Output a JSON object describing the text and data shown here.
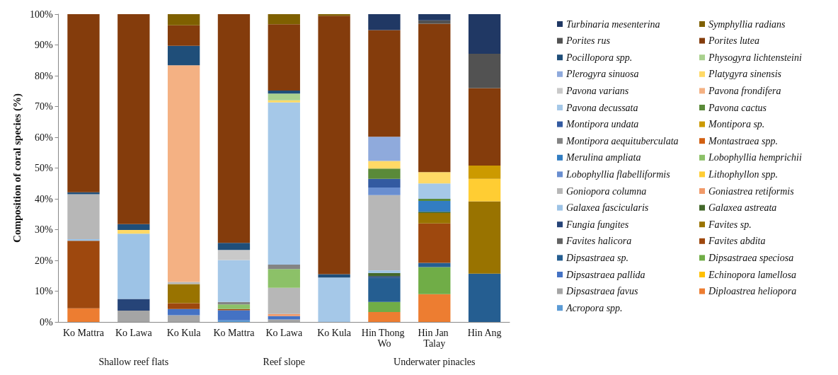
{
  "chart_data": {
    "type": "bar",
    "stacked": true,
    "ylabel": "Composition of coral species (%)",
    "categories": [
      "Ko Mattra",
      "Ko Lawa",
      "Ko Kula",
      "Ko Mattra",
      "Ko Lawa",
      "Ko Kula",
      "Hin Thong Wo",
      "Hin Jan Talay",
      "Hin Ang"
    ],
    "annotations": [
      "Shallow reef flats",
      "Reef slope",
      "Underwater pinacles"
    ],
    "ylim": [
      0,
      100
    ],
    "yticks": [
      {
        "value": 0,
        "label": "0%"
      },
      {
        "value": 10,
        "label": "10%"
      },
      {
        "value": 20,
        "label": "20%"
      },
      {
        "value": 30,
        "label": "30%"
      },
      {
        "value": 40,
        "label": "40%"
      },
      {
        "value": 50,
        "label": "50%"
      },
      {
        "value": 60,
        "label": "60%"
      },
      {
        "value": 70,
        "label": "70%"
      },
      {
        "value": 80,
        "label": "80%"
      },
      {
        "value": 90,
        "label": "90%"
      },
      {
        "value": 100,
        "label": "100%"
      }
    ],
    "legend": "right",
    "series": [
      {
        "name": "Acropora spp.",
        "color": "#5b9bd5",
        "values": [
          null,
          null,
          null,
          0.5,
          null,
          null,
          null,
          null,
          null
        ]
      },
      {
        "name": "Diploastrea heliopora",
        "color": "#ed7d31",
        "values": [
          4.4,
          null,
          null,
          null,
          null,
          null,
          3.2,
          9.0,
          null
        ]
      },
      {
        "name": "Dipsastraea favus",
        "color": "#a5a5a5",
        "values": [
          null,
          3.7,
          2.2,
          null,
          0.8,
          null,
          null,
          null,
          null
        ]
      },
      {
        "name": "Echinopora lamellosa",
        "color": "#ffc000",
        "values": [
          null,
          null,
          null,
          null,
          null,
          null,
          null,
          null,
          null
        ]
      },
      {
        "name": "Dipsastraea pallida",
        "color": "#4472c4",
        "values": [
          null,
          null,
          2.0,
          3.3,
          1.1,
          null,
          null,
          null,
          null
        ]
      },
      {
        "name": "Dipsastraea speciosa",
        "color": "#70ad47",
        "values": [
          null,
          null,
          null,
          null,
          null,
          null,
          3.3,
          8.8,
          null
        ]
      },
      {
        "name": "Dipsastraea sp.",
        "color": "#255e91",
        "values": [
          null,
          null,
          null,
          null,
          null,
          null,
          7.9,
          1.4,
          15.7
        ]
      },
      {
        "name": "Favites abdita",
        "color": "#9e480e",
        "values": [
          22.0,
          null,
          1.9,
          0.4,
          null,
          null,
          null,
          12.8,
          null
        ]
      },
      {
        "name": "Favites halicora",
        "color": "#636363",
        "values": [
          null,
          null,
          null,
          null,
          null,
          null,
          null,
          null,
          null
        ]
      },
      {
        "name": "Favites sp.",
        "color": "#997300",
        "values": [
          null,
          null,
          6.2,
          null,
          null,
          null,
          null,
          3.4,
          23.5
        ]
      },
      {
        "name": "Fungia fungites",
        "color": "#264478",
        "values": [
          null,
          3.8,
          null,
          null,
          null,
          null,
          0.5,
          null,
          null
        ]
      },
      {
        "name": "Galaxea astreata",
        "color": "#43682b",
        "values": [
          null,
          null,
          null,
          null,
          null,
          null,
          1.0,
          0.4,
          null
        ]
      },
      {
        "name": "Galaxea fascicularis",
        "color": "#9dc3e6",
        "values": [
          0.5,
          21.2,
          null,
          null,
          null,
          null,
          0.8,
          null,
          null
        ]
      },
      {
        "name": "Goniastrea retiformis",
        "color": "#f19a69",
        "values": [
          null,
          null,
          null,
          null,
          0.7,
          null,
          null,
          null,
          null
        ]
      },
      {
        "name": "Goniopora columna",
        "color": "#b7b7b7",
        "values": [
          14.6,
          null,
          0.7,
          null,
          8.5,
          null,
          24.5,
          null,
          null
        ]
      },
      {
        "name": "Lithophyllon spp.",
        "color": "#ffcd33",
        "values": [
          null,
          null,
          null,
          null,
          null,
          null,
          null,
          null,
          7.3
        ]
      },
      {
        "name": "Lobophyllia flabelliformis",
        "color": "#698ed0",
        "values": [
          null,
          null,
          null,
          null,
          null,
          null,
          2.5,
          null,
          null
        ]
      },
      {
        "name": "Lobophyllia hemprichii",
        "color": "#8cc168",
        "values": [
          null,
          null,
          null,
          1.5,
          6.1,
          null,
          null,
          null,
          null
        ]
      },
      {
        "name": "Merulina ampliata",
        "color": "#327dc2",
        "values": [
          null,
          null,
          null,
          null,
          null,
          null,
          null,
          3.5,
          null
        ]
      },
      {
        "name": "Montastraea spp.",
        "color": "#d26012",
        "values": [
          null,
          null,
          null,
          null,
          null,
          null,
          null,
          null,
          null
        ]
      },
      {
        "name": "Montipora aequituberculata",
        "color": "#848484",
        "values": [
          null,
          null,
          null,
          0.8,
          1.4,
          null,
          null,
          null,
          null
        ]
      },
      {
        "name": "Montipora sp.",
        "color": "#cc9a00",
        "values": [
          null,
          null,
          null,
          null,
          null,
          null,
          null,
          null,
          4.3
        ]
      },
      {
        "name": "Montipora undata",
        "color": "#335aa1",
        "values": [
          null,
          null,
          null,
          null,
          null,
          null,
          2.8,
          null,
          null
        ]
      },
      {
        "name": "Pavona cactus",
        "color": "#5a8a39",
        "values": [
          null,
          null,
          null,
          null,
          null,
          null,
          3.3,
          0.7,
          null
        ]
      },
      {
        "name": "Pavona decussata",
        "color": "#a5c8e8",
        "values": [
          null,
          null,
          null,
          13.6,
          52.7,
          14.4,
          null,
          5.0,
          null
        ]
      },
      {
        "name": "Pavona frondifera",
        "color": "#f4b183",
        "values": [
          null,
          null,
          70.4,
          null,
          null,
          null,
          null,
          null,
          null
        ]
      },
      {
        "name": "Pavona varians",
        "color": "#c9c9c9",
        "values": [
          null,
          null,
          null,
          3.3,
          null,
          null,
          null,
          null,
          null
        ]
      },
      {
        "name": "Platygyra sinensis",
        "color": "#ffd966",
        "values": [
          null,
          1.2,
          null,
          null,
          0.7,
          null,
          2.5,
          3.7,
          null
        ]
      },
      {
        "name": "Plerogyra sinuosa",
        "color": "#8faadc",
        "values": [
          null,
          null,
          null,
          null,
          null,
          null,
          7.9,
          null,
          null
        ]
      },
      {
        "name": "Physogyra lichtensteini",
        "color": "#a9d18e",
        "values": [
          null,
          null,
          null,
          null,
          2.2,
          null,
          null,
          null,
          null
        ]
      },
      {
        "name": "Pocillopora spp.",
        "color": "#1f4e79",
        "values": [
          0.6,
          1.9,
          6.3,
          2.3,
          1.0,
          1.1,
          null,
          null,
          null
        ]
      },
      {
        "name": "Porites lutea",
        "color": "#843c0c",
        "values": [
          57.9,
          68.2,
          6.7,
          74.3,
          21.5,
          84.0,
          34.6,
          48.2,
          25.2
        ]
      },
      {
        "name": "Porites rus",
        "color": "#525252",
        "values": [
          null,
          null,
          null,
          null,
          null,
          null,
          null,
          1.1,
          11.1
        ]
      },
      {
        "name": "Symphyllia radians",
        "color": "#7f6000",
        "values": [
          null,
          null,
          3.6,
          null,
          3.3,
          0.5,
          null,
          null,
          null
        ]
      },
      {
        "name": "Turbinaria mesenterina",
        "color": "#203864",
        "values": [
          null,
          null,
          null,
          null,
          null,
          null,
          5.2,
          2.0,
          12.9
        ]
      }
    ]
  }
}
